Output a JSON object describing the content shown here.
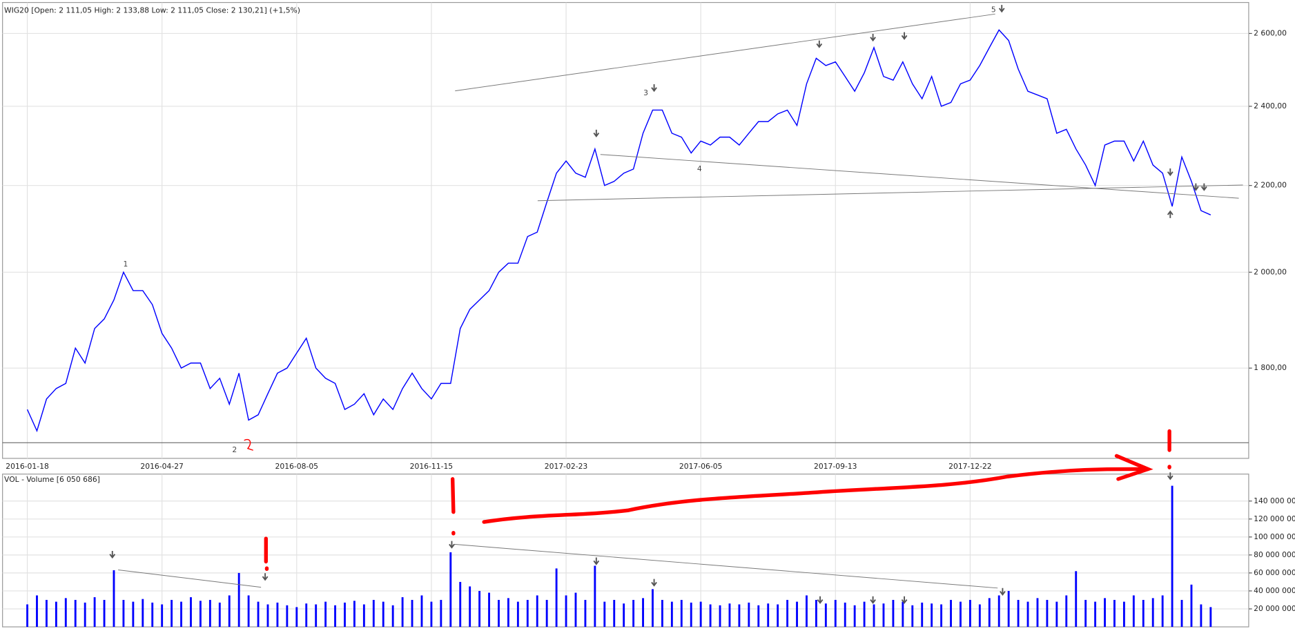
{
  "chart_data": [
    {
      "type": "line",
      "title": "WIG20 [Open: 2 111,05  High: 2 133,88  Low: 2 111,05  Close: 2 130,21] (+1,5%)",
      "color": "#0000ff",
      "log_scale": true,
      "grid": true,
      "categories": [
        "2016-01-18",
        null,
        null,
        null,
        null,
        null,
        null,
        null,
        null,
        null,
        null,
        null,
        null,
        null,
        "2016-04-27",
        null,
        null,
        null,
        null,
        null,
        null,
        null,
        null,
        null,
        null,
        null,
        null,
        null,
        "2016-08-05",
        null,
        null,
        null,
        null,
        null,
        null,
        null,
        null,
        null,
        null,
        null,
        null,
        null,
        "2016-11-15",
        null,
        null,
        null,
        null,
        null,
        null,
        null,
        null,
        null,
        null,
        null,
        null,
        null,
        "2017-02-23",
        null,
        null,
        null,
        null,
        null,
        null,
        null,
        null,
        null,
        null,
        null,
        null,
        null,
        "2017-06-05",
        null,
        null,
        null,
        null,
        null,
        null,
        null,
        null,
        null,
        null,
        null,
        null,
        null,
        "2017-09-13",
        null,
        null,
        null,
        null,
        null,
        null,
        null,
        null,
        null,
        null,
        null,
        null,
        null,
        "2017-12-22",
        null,
        null,
        null,
        null,
        null,
        null,
        null,
        null,
        null,
        null,
        null,
        null,
        null,
        null,
        null,
        null,
        null,
        null,
        null,
        null,
        null,
        null,
        null,
        null,
        null
      ],
      "values": [
        1720,
        1680,
        1740,
        1760,
        1770,
        1840,
        1810,
        1880,
        1900,
        1940,
        2000,
        1960,
        1960,
        1930,
        1870,
        1840,
        1800,
        1810,
        1810,
        1760,
        1780,
        1730,
        1790,
        1700,
        1710,
        1750,
        1790,
        1800,
        1830,
        1860,
        1800,
        1780,
        1770,
        1720,
        1730,
        1750,
        1710,
        1740,
        1720,
        1760,
        1790,
        1760,
        1740,
        1770,
        1770,
        1880,
        1920,
        1940,
        1960,
        2000,
        2020,
        2020,
        2080,
        2090,
        2160,
        2230,
        2260,
        2230,
        2220,
        2290,
        2200,
        2210,
        2230,
        2240,
        2330,
        2390,
        2390,
        2330,
        2320,
        2280,
        2310,
        2300,
        2320,
        2320,
        2300,
        2330,
        2360,
        2360,
        2380,
        2390,
        2350,
        2460,
        2530,
        2510,
        2520,
        2480,
        2440,
        2490,
        2560,
        2480,
        2470,
        2520,
        2460,
        2420,
        2480,
        2400,
        2410,
        2460,
        2470,
        2510,
        2560,
        2610,
        2580,
        2500,
        2440,
        2430,
        2420,
        2330,
        2340,
        2290,
        2250,
        2200,
        2300,
        2310,
        2310,
        2260,
        2310,
        2250,
        2230,
        2150,
        2270,
        2210,
        2140,
        2130
      ],
      "ylim": [
        1630,
        2690
      ],
      "yticks": [
        {
          "value": 1800,
          "label": "1 800,00"
        },
        {
          "value": 2000,
          "label": "2 000,00"
        },
        {
          "value": 2200,
          "label": "2 200,00"
        },
        {
          "value": 2400,
          "label": "2 400,00"
        },
        {
          "value": 2600,
          "label": "2 600,00"
        }
      ],
      "annotations": [
        "1",
        "2",
        "3",
        "4",
        "5"
      ]
    },
    {
      "type": "bar",
      "title": "VOL - Volume [6 050 686]",
      "color": "#0000ff",
      "grid": true,
      "values": [
        25000000,
        35000000,
        30000000,
        28000000,
        32000000,
        30000000,
        27000000,
        33000000,
        30000000,
        63000000,
        30000000,
        28000000,
        31000000,
        27000000,
        25000000,
        30000000,
        28000000,
        33000000,
        29000000,
        30000000,
        27000000,
        35000000,
        60000000,
        35000000,
        28000000,
        25000000,
        27000000,
        24000000,
        22000000,
        26000000,
        25000000,
        28000000,
        24000000,
        27000000,
        29000000,
        25000000,
        30000000,
        28000000,
        24000000,
        33000000,
        30000000,
        35000000,
        28000000,
        30000000,
        83000000,
        50000000,
        45000000,
        40000000,
        38000000,
        30000000,
        32000000,
        28000000,
        30000000,
        35000000,
        30000000,
        65000000,
        35000000,
        38000000,
        30000000,
        68000000,
        28000000,
        30000000,
        26000000,
        30000000,
        32000000,
        42000000,
        30000000,
        28000000,
        30000000,
        27000000,
        28000000,
        25000000,
        24000000,
        26000000,
        25000000,
        27000000,
        24000000,
        26000000,
        25000000,
        30000000,
        28000000,
        35000000,
        30000000,
        26000000,
        30000000,
        27000000,
        24000000,
        28000000,
        25000000,
        26000000,
        30000000,
        28000000,
        24000000,
        27000000,
        26000000,
        25000000,
        30000000,
        28000000,
        30000000,
        25000000,
        32000000,
        35000000,
        40000000,
        30000000,
        28000000,
        32000000,
        30000000,
        28000000,
        35000000,
        62000000,
        30000000,
        28000000,
        32000000,
        30000000,
        28000000,
        35000000,
        30000000,
        32000000,
        35000000,
        157000000,
        30000000,
        47000000,
        25000000,
        22000000
      ],
      "ylim": [
        0,
        170000000
      ],
      "yticks": [
        {
          "value": 20000000,
          "label": "20 000 000"
        },
        {
          "value": 40000000,
          "label": "40 000 000"
        },
        {
          "value": 60000000,
          "label": "60 000 000"
        },
        {
          "value": 80000000,
          "label": "80 000 000"
        },
        {
          "value": 100000000,
          "label": "100 000 000"
        },
        {
          "value": 120000000,
          "label": "120 000 000"
        },
        {
          "value": 140000000,
          "label": "140 000 000"
        }
      ]
    }
  ]
}
